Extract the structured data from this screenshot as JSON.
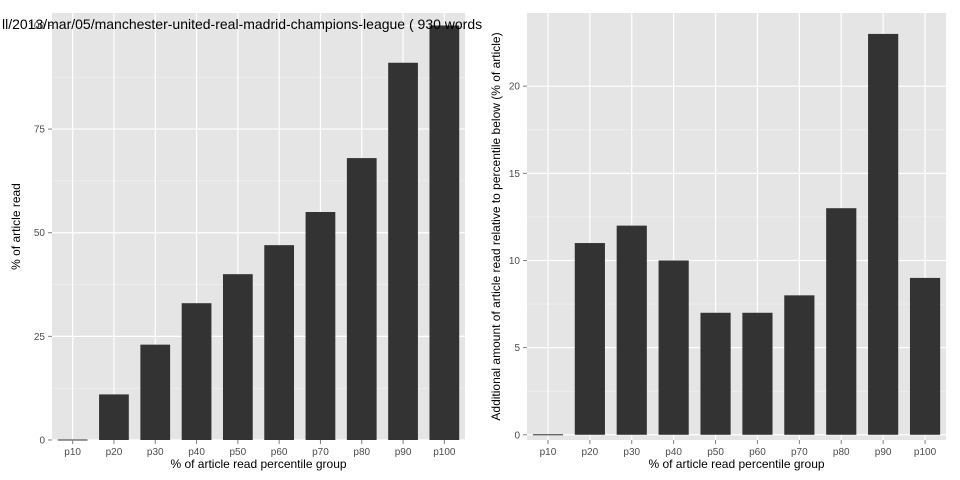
{
  "chart_data": [
    {
      "type": "bar",
      "title": "ll/2013/mar/05/manchester-united-real-madrid-champions-league ( 930 words",
      "categories": [
        "p10",
        "p20",
        "p30",
        "p40",
        "p50",
        "p60",
        "p70",
        "p80",
        "p90",
        "p100"
      ],
      "values": [
        0,
        11,
        23,
        33,
        40,
        47,
        55,
        68,
        91,
        100
      ],
      "xlabel": "% of article read percentile group",
      "ylabel": "% of article read",
      "ylim": [
        0,
        103
      ],
      "yticks": [
        0,
        25,
        50,
        75,
        100
      ],
      "bar_color": "#333333",
      "panel_color": "#e5e5e5",
      "grid": true
    },
    {
      "type": "bar",
      "title": "",
      "categories": [
        "p10",
        "p20",
        "p30",
        "p40",
        "p50",
        "p60",
        "p70",
        "p80",
        "p90",
        "p100"
      ],
      "values": [
        0,
        11,
        12,
        10,
        7,
        7,
        8,
        13,
        23,
        9
      ],
      "xlabel": "% of article read percentile group",
      "ylabel": "Additional amount of article read relative to percentile below (% of article)",
      "ylim": [
        -0.3,
        24.2
      ],
      "yticks": [
        0,
        5,
        10,
        15,
        20
      ],
      "bar_color": "#333333",
      "panel_color": "#e5e5e5",
      "grid": true
    }
  ]
}
